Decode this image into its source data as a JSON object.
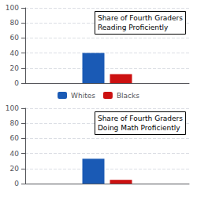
{
  "chart_data": [
    {
      "type": "bar",
      "title": "Share of Fourth Graders\nReading Proficiently",
      "categories": [
        null
      ],
      "series": [
        {
          "name": "Whites",
          "color": "#1a5ab5",
          "values": [
            40
          ]
        },
        {
          "name": "Blacks",
          "color": "#cc1111",
          "values": [
            12
          ]
        }
      ],
      "ylim": [
        0,
        100
      ],
      "yticks": [
        0,
        20,
        40,
        60,
        80,
        100
      ],
      "grid": true,
      "tick_labels": "y",
      "legend": "bottom"
    },
    {
      "type": "bar",
      "title": "Share of Fourth Graders\nDoing Math Proficiently",
      "categories": [
        null
      ],
      "series": [
        {
          "name": "Whites",
          "color": "#1a5ab5",
          "values": [
            33
          ]
        },
        {
          "name": "Blacks",
          "color": "#cc1111",
          "values": [
            5
          ]
        }
      ],
      "ylim": [
        0,
        100
      ],
      "yticks": [
        0,
        20,
        40,
        60,
        80,
        100
      ],
      "grid": true,
      "tick_labels": "y"
    }
  ]
}
